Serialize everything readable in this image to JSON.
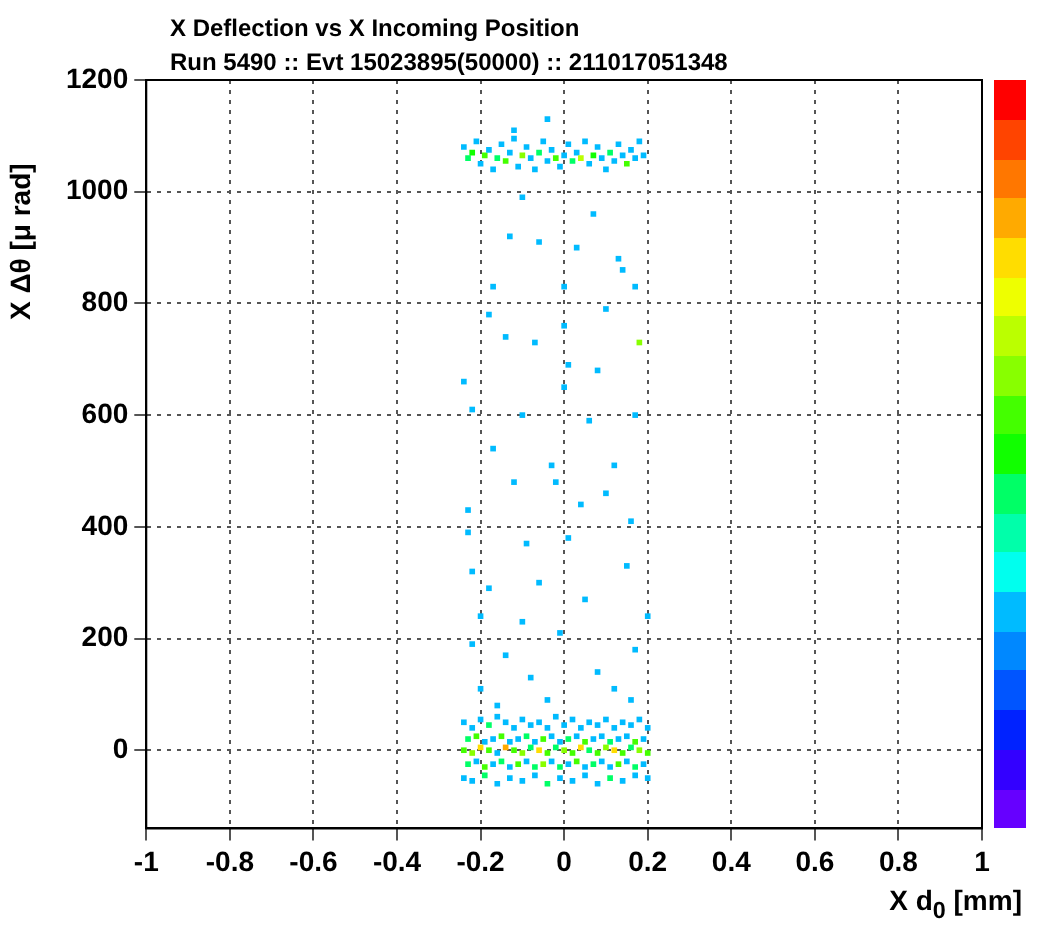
{
  "chart_data": {
    "type": "scatter",
    "title": "X Deflection vs X Incoming Position",
    "subtitle": "Run 5490 :: Evt 15023895(50000) :: 211017051348",
    "xlabel": "X d$_{0}$ [mm]",
    "ylabel": "X Δθ [μ rad]",
    "xlim": [
      -1,
      1
    ],
    "ylim": [
      -140,
      1200
    ],
    "xticks": [
      -1,
      -0.8,
      -0.6,
      -0.4,
      -0.2,
      0,
      0.2,
      0.4,
      0.6,
      0.8,
      1
    ],
    "yticks": [
      0,
      200,
      400,
      600,
      800,
      1000,
      1200
    ],
    "grid": true,
    "legend": false,
    "marker": "square",
    "x": [
      -0.24,
      -0.23,
      -0.22,
      -0.21,
      -0.2,
      -0.19,
      -0.18,
      -0.17,
      -0.16,
      -0.15,
      -0.14,
      -0.13,
      -0.12,
      -0.11,
      -0.1,
      -0.09,
      -0.08,
      -0.07,
      -0.06,
      -0.05,
      -0.04,
      -0.03,
      -0.02,
      -0.01,
      0,
      0.01,
      0.02,
      0.03,
      0.04,
      0.05,
      0.06,
      0.07,
      0.08,
      0.09,
      0.1,
      0.11,
      0.12,
      0.13,
      0.14,
      0.15,
      0.16,
      0.17,
      0.18,
      0.19,
      -0.04,
      -0.12,
      -0.1,
      0.07,
      -0.13,
      -0.06,
      0.03,
      0.13,
      0.14,
      -0.17,
      0,
      0.17,
      0.1,
      0.18,
      -0.18,
      0,
      -0.14,
      0.01,
      -0.07,
      -0.24,
      0,
      0.08,
      -0.22,
      -0.1,
      0.06,
      0.17,
      -0.17,
      0.12,
      -0.02,
      -0.12,
      0.1,
      -0.23,
      0.04,
      -0.03,
      0.16,
      -0.23,
      -0.09,
      0.01,
      -0.22,
      0.15,
      -0.18,
      -0.06,
      0.05,
      -0.2,
      -0.1,
      0.2,
      -0.22,
      -0.01,
      0.17,
      -0.14,
      -0.08,
      0.08,
      0.12,
      -0.2,
      -0.04,
      0.16,
      -0.16,
      -0.24,
      -0.22,
      -0.2,
      -0.18,
      -0.16,
      -0.14,
      -0.12,
      -0.1,
      -0.08,
      -0.06,
      -0.04,
      -0.02,
      0,
      0.02,
      0.04,
      0.06,
      0.08,
      0.1,
      0.12,
      0.14,
      0.16,
      0.18,
      0.2,
      -0.23,
      -0.21,
      -0.19,
      -0.17,
      -0.15,
      -0.13,
      -0.11,
      -0.09,
      -0.07,
      -0.05,
      -0.03,
      -0.01,
      0.01,
      0.03,
      0.05,
      0.07,
      0.09,
      0.11,
      0.13,
      0.15,
      0.17,
      0.19,
      -0.24,
      -0.22,
      -0.2,
      -0.18,
      -0.16,
      -0.14,
      -0.12,
      -0.1,
      -0.08,
      -0.06,
      -0.04,
      -0.02,
      0,
      0.02,
      0.04,
      0.06,
      0.08,
      0.1,
      0.12,
      0.14,
      0.16,
      0.18,
      0.2,
      -0.23,
      -0.21,
      -0.19,
      -0.17,
      -0.15,
      -0.13,
      -0.11,
      -0.09,
      -0.07,
      -0.05,
      -0.03,
      -0.01,
      0.01,
      0.03,
      0.05,
      0.07,
      0.09,
      0.11,
      0.13,
      0.15,
      0.17,
      0.19,
      -0.24,
      -0.22,
      -0.19,
      -0.16,
      -0.13,
      -0.1,
      -0.07,
      -0.04,
      -0.01,
      0.02,
      0.05,
      0.08,
      0.11,
      0.14,
      0.17,
      0.2
    ],
    "values": [
      1080,
      1060,
      1070,
      1090,
      1050,
      1065,
      1075,
      1040,
      1060,
      1085,
      1055,
      1070,
      1095,
      1045,
      1065,
      1080,
      1060,
      1040,
      1070,
      1090,
      1055,
      1075,
      1060,
      1045,
      1065,
      1085,
      1055,
      1070,
      1060,
      1090,
      1050,
      1065,
      1080,
      1060,
      1040,
      1070,
      1055,
      1085,
      1065,
      1050,
      1075,
      1060,
      1090,
      1065,
      1130,
      1110,
      990,
      960,
      920,
      910,
      900,
      880,
      860,
      830,
      830,
      830,
      790,
      730,
      780,
      760,
      740,
      690,
      730,
      660,
      650,
      680,
      610,
      600,
      590,
      600,
      540,
      510,
      480,
      480,
      460,
      430,
      440,
      510,
      410,
      390,
      370,
      380,
      320,
      330,
      290,
      300,
      270,
      240,
      230,
      240,
      190,
      210,
      180,
      170,
      130,
      140,
      110,
      110,
      90,
      90,
      80,
      50,
      40,
      55,
      45,
      60,
      50,
      40,
      55,
      45,
      50,
      40,
      60,
      45,
      55,
      40,
      50,
      45,
      55,
      40,
      50,
      45,
      55,
      40,
      20,
      25,
      15,
      20,
      25,
      15,
      20,
      25,
      15,
      20,
      25,
      15,
      20,
      25,
      15,
      20,
      25,
      15,
      20,
      25,
      15,
      20,
      0,
      -5,
      5,
      0,
      -5,
      5,
      0,
      -5,
      5,
      0,
      -5,
      5,
      0,
      -5,
      5,
      0,
      -5,
      5,
      0,
      -5,
      5,
      0,
      -5,
      -25,
      -20,
      -30,
      -25,
      -20,
      -30,
      -25,
      -20,
      -30,
      -25,
      -20,
      -30,
      -25,
      -20,
      -30,
      -25,
      -20,
      -30,
      -25,
      -20,
      -30,
      -25,
      -50,
      -55,
      -45,
      -60,
      -50,
      -55,
      -45,
      -60,
      -50,
      -55,
      -45,
      -60,
      -50,
      -55,
      -45,
      -50
    ],
    "colors": [
      "#00bbff",
      "#00ff66",
      "#11ff00",
      "#00bbff",
      "#00bbff",
      "#44ff00",
      "#00bbff",
      "#00bbff",
      "#00ff66",
      "#00bbff",
      "#44ff00",
      "#00bbff",
      "#00bbff",
      "#00bbff",
      "#88ff00",
      "#00bbff",
      "#00bbff",
      "#00bbff",
      "#00ff66",
      "#00bbff",
      "#00bbff",
      "#00bbff",
      "#44ff00",
      "#00bbff",
      "#00bbff",
      "#00bbff",
      "#00ff66",
      "#00bbff",
      "#bbff00",
      "#00bbff",
      "#00bbff",
      "#11ff00",
      "#00bbff",
      "#00bbff",
      "#00bbff",
      "#00ff66",
      "#00bbff",
      "#00bbff",
      "#00bbff",
      "#44ff00",
      "#00bbff",
      "#00bbff",
      "#00bbff",
      "#00bbff",
      "#00bbff",
      "#00bbff",
      "#00bbff",
      "#00bbff",
      "#00bbff",
      "#00bbff",
      "#00bbff",
      "#00bbff",
      "#00bbff",
      "#00bbff",
      "#00bbff",
      "#00bbff",
      "#00bbff",
      "#88ff00",
      "#00bbff",
      "#00bbff",
      "#00bbff",
      "#00bbff",
      "#00bbff",
      "#00bbff",
      "#00bbff",
      "#00bbff",
      "#00bbff",
      "#00bbff",
      "#00bbff",
      "#00bbff",
      "#00bbff",
      "#00bbff",
      "#00bbff",
      "#00bbff",
      "#00bbff",
      "#00bbff",
      "#00bbff",
      "#00bbff",
      "#00bbff",
      "#00bbff",
      "#00bbff",
      "#00bbff",
      "#00bbff",
      "#00bbff",
      "#00bbff",
      "#00bbff",
      "#00bbff",
      "#00bbff",
      "#00bbff",
      "#00bbff",
      "#00bbff",
      "#00bbff",
      "#00bbff",
      "#00bbff",
      "#00bbff",
      "#00bbff",
      "#00bbff",
      "#00bbff",
      "#00bbff",
      "#00bbff",
      "#00bbff",
      "#00bbff",
      "#00bbff",
      "#00bbff",
      "#00ff66",
      "#00bbff",
      "#00bbff",
      "#00bbff",
      "#00bbff",
      "#00bbff",
      "#00bbff",
      "#00bbff",
      "#00bbff",
      "#00bbff",
      "#00bbff",
      "#00bbff",
      "#00bbff",
      "#00bbff",
      "#00bbff",
      "#00bbff",
      "#00bbff",
      "#00bbff",
      "#00bbff",
      "#00bbff",
      "#00ff66",
      "#44ff00",
      "#00bbff",
      "#00bbff",
      "#44ff00",
      "#00bbff",
      "#00bbff",
      "#00ff66",
      "#00bbff",
      "#44ff00",
      "#00bbff",
      "#00bbff",
      "#00ff66",
      "#00bbff",
      "#44ff00",
      "#00bbff",
      "#00bbff",
      "#00ff66",
      "#00bbff",
      "#00bbff",
      "#44ff00",
      "#00bbff",
      "#44ff00",
      "#88ff00",
      "#ffdd00",
      "#44ff00",
      "#00bbff",
      "#ffaa00",
      "#44ff00",
      "#88ff00",
      "#00ff66",
      "#ffdd00",
      "#44ff00",
      "#00ff66",
      "#88ff00",
      "#44ff00",
      "#ffdd00",
      "#00ff66",
      "#44ff00",
      "#88ff00",
      "#ffdd00",
      "#44ff00",
      "#00ff66",
      "#88ff00",
      "#44ff00",
      "#00ff66",
      "#00bbff",
      "#44ff00",
      "#00bbff",
      "#00ff66",
      "#00bbff",
      "#44ff00",
      "#00bbff",
      "#00ff66",
      "#88ff00",
      "#00bbff",
      "#00ff66",
      "#00bbff",
      "#44ff00",
      "#00bbff",
      "#00ff66",
      "#00bbff",
      "#00bbff",
      "#44ff00",
      "#00bbff",
      "#00ff66",
      "#00bbff",
      "#00bbff",
      "#00bbff",
      "#00ff66",
      "#00bbff",
      "#00bbff",
      "#00bbff",
      "#00bbff",
      "#00ff66",
      "#00bbff",
      "#00bbff",
      "#00bbff",
      "#00bbff",
      "#00ff66",
      "#00bbff",
      "#00bbff",
      "#00bbff"
    ]
  }
}
